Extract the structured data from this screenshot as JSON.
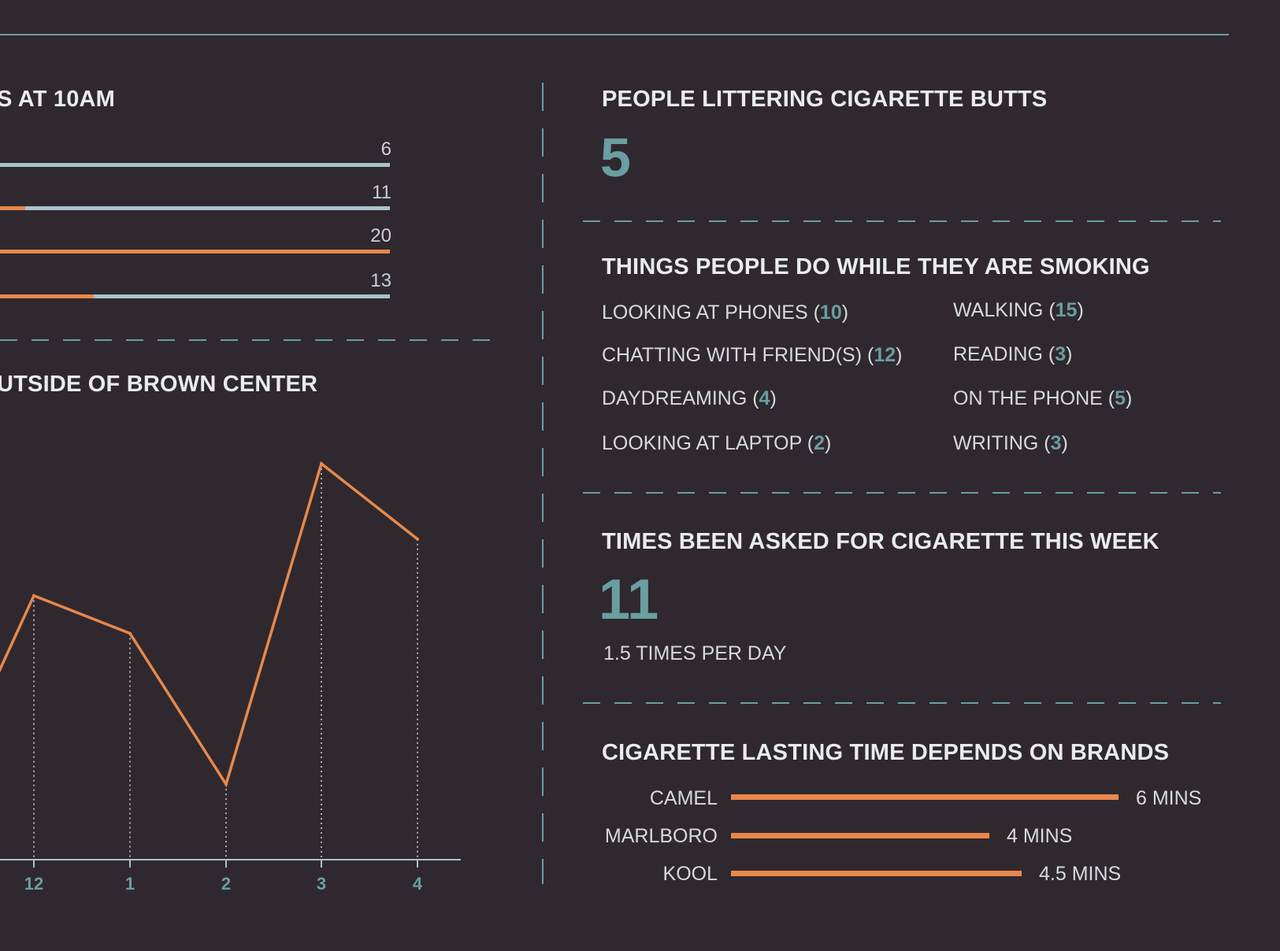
{
  "left": {
    "bars_heading": "S AT 10AM",
    "bars": [
      {
        "value": "6",
        "fill": 0.0
      },
      {
        "value": "11",
        "fill": 0.065
      },
      {
        "value": "20",
        "fill": 1.0
      },
      {
        "value": "13",
        "fill": 0.24
      }
    ],
    "line_heading": "UTSIDE OF BROWN CENTER"
  },
  "chart_data": {
    "type": "line",
    "title": "UTSIDE OF BROWN CENTER",
    "x": [
      "12",
      "1",
      "2",
      "3",
      "4"
    ],
    "series": [
      {
        "values": [
          14,
          12,
          4,
          21,
          17
        ]
      }
    ],
    "partial_left_value": 9,
    "ylim": [
      0,
      22
    ],
    "grid": false,
    "colors": {
      "line": "#e8884c",
      "axis": "#a9c3c9",
      "ticks": "#6a9ea0"
    }
  },
  "littering": {
    "heading": "PEOPLE LITTERING CIGARETTE BUTTS",
    "value": "5"
  },
  "activities": {
    "heading": "THINGS PEOPLE DO WHILE THEY ARE SMOKING",
    "items": [
      {
        "label": "LOOKING AT PHONES (",
        "count": "10",
        "close": ")"
      },
      {
        "label": "WALKING (",
        "count": "15",
        "close": ")"
      },
      {
        "label": "CHATTING WITH FRIEND(S) (",
        "count": "12",
        "close": ")"
      },
      {
        "label": "READING (",
        "count": "3",
        "close": ")"
      },
      {
        "label": "DAYDREAMING (",
        "count": "4",
        "close": ")"
      },
      {
        "label": "ON THE PHONE (",
        "count": "5",
        "close": ")"
      },
      {
        "label": "LOOKING AT LAPTOP (",
        "count": "2",
        "close": ")"
      },
      {
        "label": "WRITING (",
        "count": "3",
        "close": ")"
      }
    ]
  },
  "asked": {
    "heading": "TIMES BEEN ASKED FOR CIGARETTE THIS WEEK",
    "value": "11",
    "sub": "1.5 TIMES PER DAY"
  },
  "brands": {
    "heading": "CIGARETTE LASTING TIME DEPENDS ON  BRANDS",
    "items": [
      {
        "name": "CAMEL",
        "value": "6 MINS",
        "minutes": 6
      },
      {
        "name": "MARLBORO",
        "value": "4 MINS",
        "minutes": 4
      },
      {
        "name": "KOOL",
        "value": "4.5 MINS",
        "minutes": 4.5
      }
    ]
  },
  "colors": {
    "background": "#2f292f",
    "teal": "#6a9ea0",
    "orange": "#e8884c",
    "bar_track": "#a9c3c9"
  }
}
